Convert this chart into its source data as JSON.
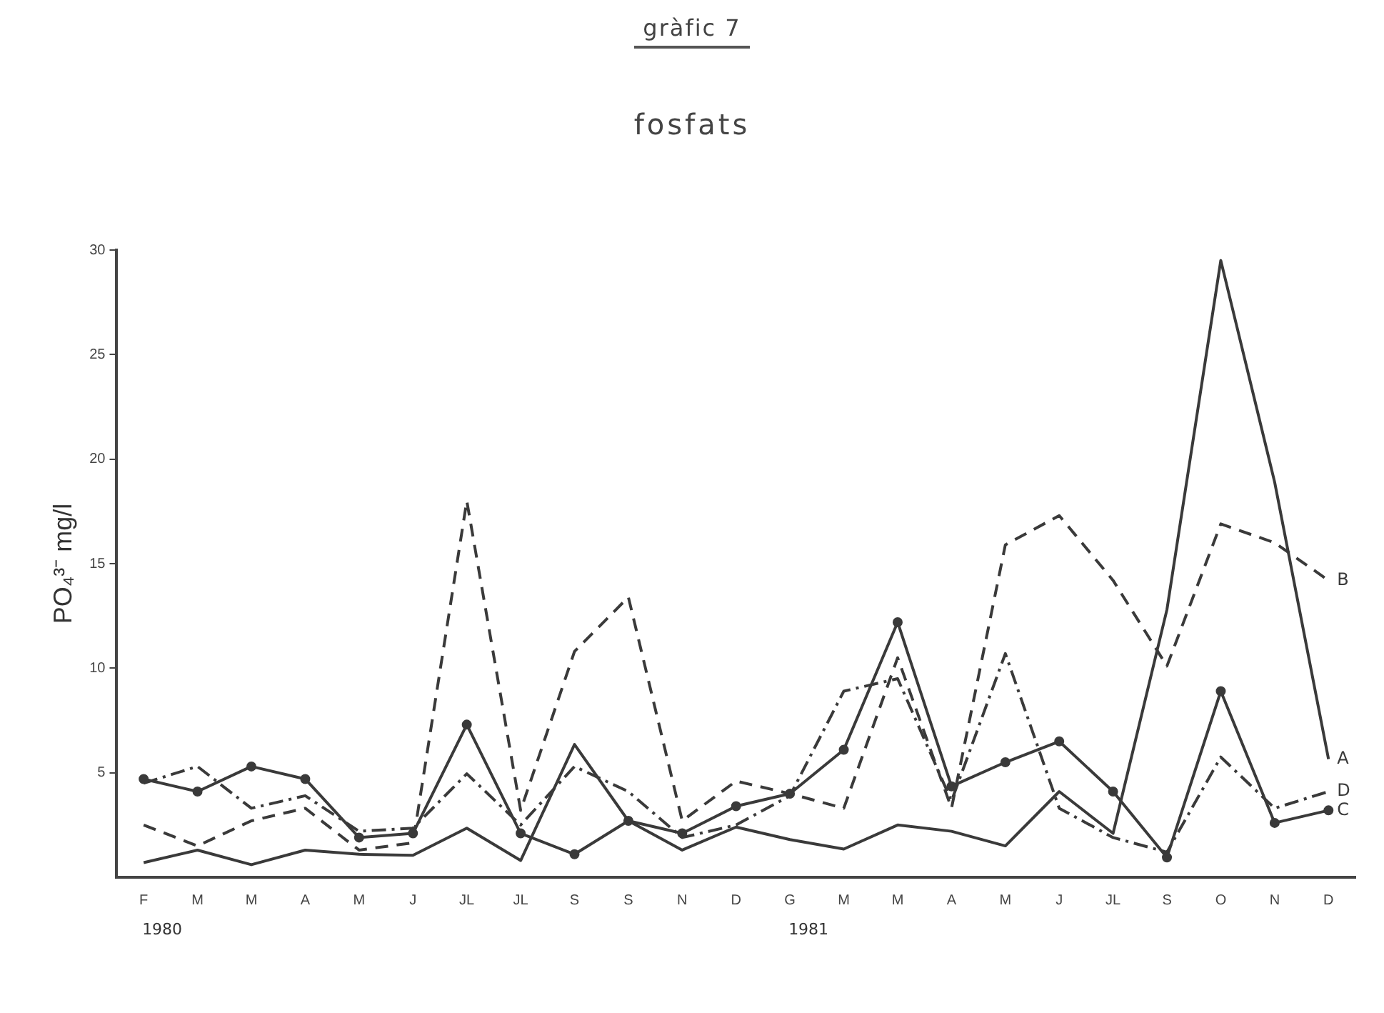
{
  "chart_data": {
    "type": "line",
    "title": "gràfic 7",
    "subtitle": "fosfats",
    "ylabel": "PO₄³⁻ mg/l",
    "categories": [
      "F",
      "M",
      "M",
      "A",
      "M",
      "J",
      "JL",
      "JL",
      "S",
      "S",
      "N",
      "D",
      "G",
      "M",
      "M",
      "A",
      "M",
      "J",
      "JL",
      "S",
      "O",
      "N",
      "D"
    ],
    "series": [
      {
        "name": "A",
        "color": "#3a3a3a",
        "line_style": "solid",
        "marker": "none",
        "values": [
          0.7,
          1.3,
          0.6,
          1.3,
          1.1,
          1.05,
          2.35,
          0.8,
          6.35,
          2.7,
          1.3,
          2.4,
          1.8,
          1.35,
          2.5,
          2.2,
          1.5,
          4.1,
          2.1,
          12.8,
          29.5,
          18.9,
          5.65
        ]
      },
      {
        "name": "B",
        "color": "#3a3a3a",
        "line_style": "dashed",
        "marker": "none",
        "values": [
          2.5,
          1.5,
          2.7,
          3.3,
          1.3,
          1.65,
          18.0,
          3.2,
          10.8,
          13.4,
          2.7,
          4.6,
          4.0,
          3.3,
          10.5,
          3.3,
          15.9,
          17.3,
          14.2,
          10.1,
          16.9,
          16.0,
          14.2
        ]
      },
      {
        "name": "C",
        "color": "#3a3a3a",
        "line_style": "solid",
        "marker": "circle",
        "values": [
          4.7,
          4.1,
          5.3,
          4.7,
          1.9,
          2.1,
          7.3,
          2.1,
          1.1,
          2.7,
          2.1,
          3.4,
          4.0,
          6.1,
          12.2,
          4.35,
          5.5,
          6.5,
          4.1,
          0.95,
          8.9,
          2.6,
          3.2
        ]
      },
      {
        "name": "D",
        "color": "#3a3a3a",
        "line_style": "dashdot",
        "marker": "none",
        "values": [
          4.5,
          5.3,
          3.3,
          3.9,
          2.2,
          2.35,
          4.95,
          2.5,
          5.3,
          4.1,
          1.9,
          2.5,
          3.9,
          8.9,
          9.5,
          3.65,
          10.7,
          3.3,
          1.9,
          1.2,
          5.75,
          3.3,
          4.1
        ]
      }
    ],
    "ylim": [
      0,
      30
    ],
    "yticks": [
      5,
      10,
      15,
      20,
      25,
      30
    ],
    "grid": false,
    "legend": false,
    "annotations": [
      "1980",
      "1981"
    ]
  }
}
